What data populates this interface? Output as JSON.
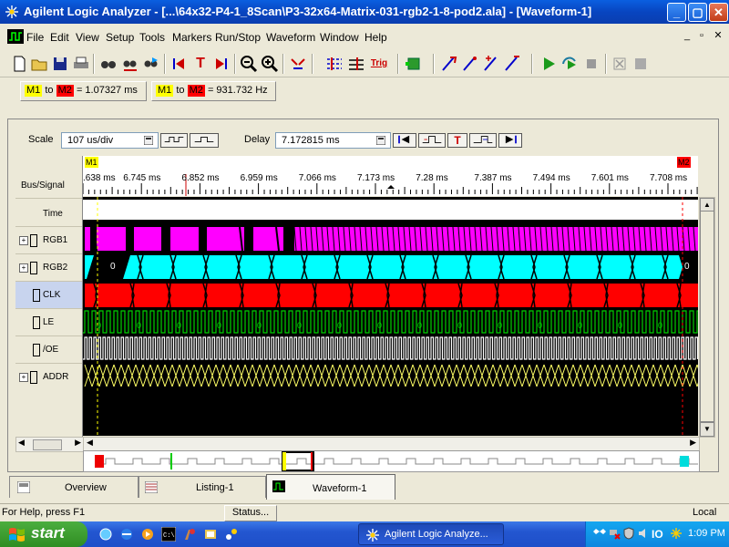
{
  "window": {
    "title": "Agilent Logic Analyzer - [...\\64x32-P4-1_8Scan\\P3-32x64-Matrix-031-rgb2-1-8-pod2.ala] - [Waveform-1]",
    "minimize": "_",
    "maximize": "▢",
    "close": "✕"
  },
  "menu": {
    "items": [
      "File",
      "Edit",
      "View",
      "Setup",
      "Tools",
      "Markers",
      "Run/Stop",
      "Waveform",
      "Window",
      "Help"
    ],
    "mdi_minimize": "_",
    "mdi_restore": "▫",
    "mdi_close": "✕"
  },
  "toolbar": {
    "trig_label": "Trig",
    "mark_left": "T"
  },
  "markers": {
    "m1": "M1",
    "m2": "M2",
    "to": "to",
    "time_value": "= 1.07327 ms",
    "freq_value": "= 931.732 Hz",
    "m1_color": "#ffff00",
    "m2_color": "#ff0000"
  },
  "waveform": {
    "scale_label": "Scale",
    "scale_value": "107 us/div",
    "delay_label": "Delay",
    "delay_value": "7.172815 ms",
    "bus_signal_header": "Bus/Signal",
    "marker_m1": "M1",
    "marker_m2": "M2",
    "timeline": [
      ".638 ms",
      "6.745 ms",
      "6.852 ms",
      "6.959 ms",
      "7.066 ms",
      "7.173 ms",
      "7.28 ms",
      "7.387 ms",
      "7.494 ms",
      "7.601 ms",
      "7.708 ms"
    ],
    "signals": [
      {
        "name": "Time",
        "expandable": false,
        "color": "#ffffff"
      },
      {
        "name": "RGB1",
        "expandable": true,
        "color": "#ff00ff"
      },
      {
        "name": "RGB2",
        "expandable": true,
        "color": "#00ffff"
      },
      {
        "name": "CLK",
        "expandable": false,
        "color": "#ff0000"
      },
      {
        "name": "LE",
        "expandable": false,
        "color": "#00c000"
      },
      {
        "name": "/OE",
        "expandable": false,
        "color": "#ffffff"
      },
      {
        "name": "ADDR",
        "expandable": true,
        "color": "#ffff66"
      }
    ],
    "rgb2_value_left": "0",
    "rgb2_value_right": "0",
    "le_value": "0"
  },
  "tabs": [
    {
      "label": "Overview"
    },
    {
      "label": "Listing-1"
    },
    {
      "label": "Waveform-1"
    }
  ],
  "status": {
    "help": "For Help, press F1",
    "status_button": "Status...",
    "mode": "Local"
  },
  "taskbar": {
    "start": "start",
    "task": "Agilent Logic Analyze...",
    "clock": "1:09 PM"
  }
}
